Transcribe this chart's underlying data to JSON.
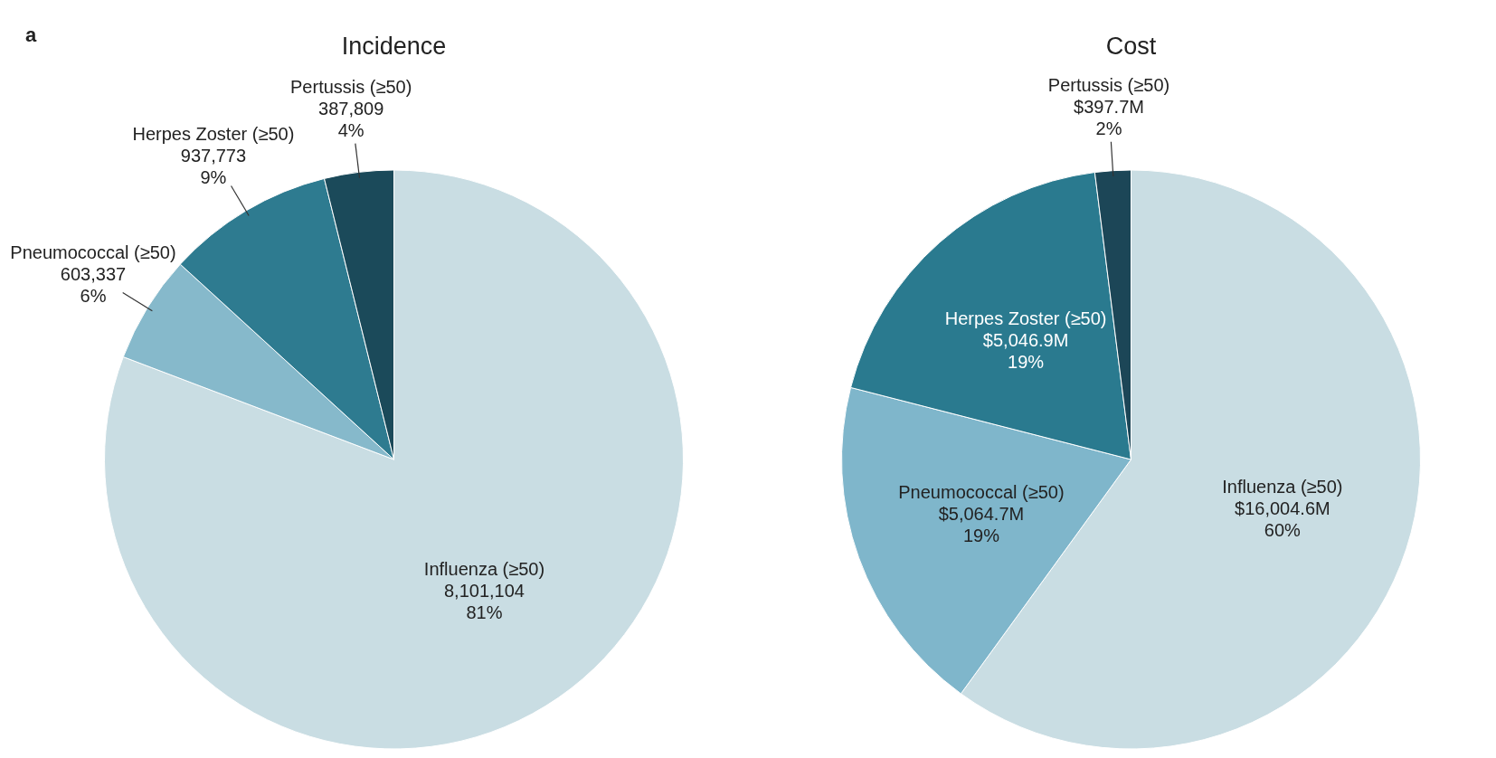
{
  "chart_data": [
    {
      "type": "pie",
      "title": "Incidence",
      "annotations": [
        "a"
      ],
      "categories": [
        "Influenza (≥50)",
        "Pneumococcal (≥50)",
        "Herpes Zoster (≥50)",
        "Pertussis (≥50)"
      ],
      "values": [
        8101104,
        603337,
        937773,
        387809
      ],
      "colors": [
        "#c9dde3",
        "#86b9cb",
        "#2e7b90",
        "#1b4a5a"
      ],
      "value_labels": [
        "8,101,104\n81%",
        "603,337\n6%",
        "937,773\n9%",
        "387,809\n4%"
      ]
    },
    {
      "type": "pie",
      "title": "Cost",
      "categories": [
        "Influenza (≥50)",
        "Pneumococcal (≥50)",
        "Herpes Zoster (≥50)",
        "Pertussis (≥50)"
      ],
      "values": [
        60,
        19,
        19,
        2
      ],
      "colors": [
        "#c9dde3",
        "#7fb6cb",
        "#2a7a8f",
        "#1c4657"
      ],
      "value_labels": [
        "$16,004.6M\n60%",
        "$5,064.7M\n19%",
        "$5,046.9M\n19%",
        "$397.7M\n2%"
      ]
    }
  ]
}
